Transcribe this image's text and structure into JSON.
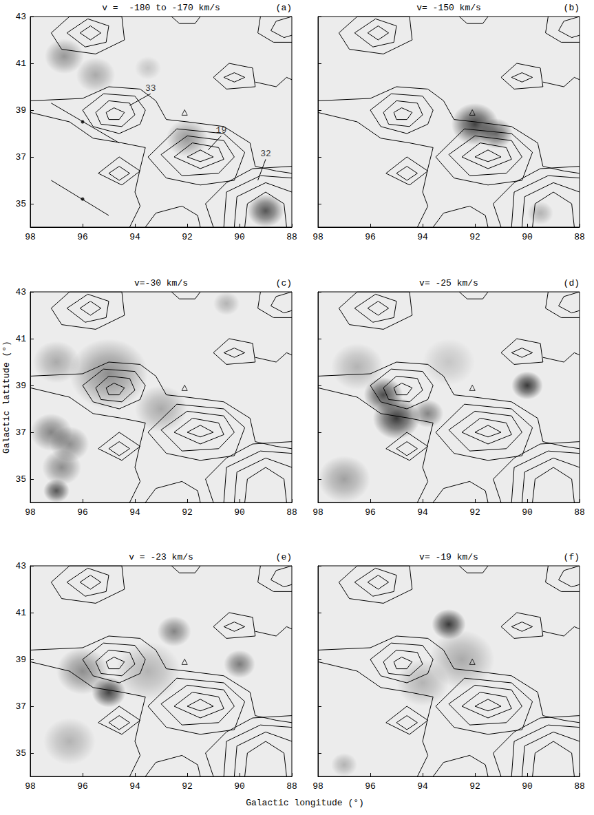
{
  "chart_data": [
    {
      "type": "contour_map",
      "title": "v =  -180 to -170 km/s",
      "panel": "(a)",
      "xlim": [
        98,
        88
      ],
      "ylim": [
        34,
        43
      ],
      "xticks": [
        88,
        90,
        92,
        94,
        96,
        98
      ],
      "yticks": [
        35,
        37,
        39,
        41,
        43
      ],
      "grid": false,
      "tick_labels": true,
      "blobs": [
        {
          "x": 96.7,
          "y": 41.3,
          "size": 1.5,
          "intensity": 0.45
        },
        {
          "x": 95.5,
          "y": 40.5,
          "size": 1.5,
          "intensity": 0.35
        },
        {
          "x": 92.0,
          "y": 37.8,
          "size": 1.6,
          "intensity": 0.45
        },
        {
          "x": 89.0,
          "y": 34.7,
          "size": 1.4,
          "intensity": 0.8
        },
        {
          "x": 93.5,
          "y": 40.8,
          "size": 1.0,
          "intensity": 0.2
        }
      ],
      "annotations": [
        {
          "text": "33",
          "x": 93.4,
          "y": 39.7,
          "to": [
            94.2,
            39.2
          ]
        },
        {
          "text": "19",
          "x": 90.7,
          "y": 37.9,
          "to": [
            91.2,
            37.3
          ]
        },
        {
          "text": "32",
          "x": 89.0,
          "y": 36.9,
          "to": [
            89.3,
            36.0
          ]
        }
      ],
      "segments": [
        {
          "from": [
            97.2,
            39.3
          ],
          "to": [
            94.6,
            37.6
          ],
          "dot": [
            96.0,
            38.5
          ]
        },
        {
          "from": [
            97.2,
            36.0
          ],
          "to": [
            95.0,
            34.5
          ],
          "dot": [
            96.0,
            35.2
          ]
        }
      ]
    },
    {
      "type": "contour_map",
      "title": "v= -150 km/s",
      "panel": "(b)",
      "xlim": [
        98,
        88
      ],
      "ylim": [
        34,
        43
      ],
      "xticks": [
        88,
        90,
        92,
        94,
        96,
        98
      ],
      "yticks": [
        35,
        37,
        39,
        41,
        43
      ],
      "grid": false,
      "tick_labels": "x",
      "blobs": [
        {
          "x": 92.0,
          "y": 38.4,
          "size": 1.8,
          "intensity": 0.9
        },
        {
          "x": 91.2,
          "y": 38.0,
          "size": 1.3,
          "intensity": 0.7
        },
        {
          "x": 89.5,
          "y": 34.6,
          "size": 1.0,
          "intensity": 0.3
        }
      ]
    },
    {
      "type": "contour_map",
      "title": "v=-30 km/s",
      "panel": "(c)",
      "xlim": [
        98,
        88
      ],
      "ylim": [
        34,
        43
      ],
      "xticks": [
        88,
        90,
        92,
        94,
        96,
        98
      ],
      "yticks": [
        35,
        37,
        39,
        41,
        43
      ],
      "grid": false,
      "tick_labels": true,
      "blobs": [
        {
          "x": 95.0,
          "y": 39.5,
          "size": 3.0,
          "intensity": 0.5
        },
        {
          "x": 97.2,
          "y": 37.0,
          "size": 1.6,
          "intensity": 0.55
        },
        {
          "x": 97.0,
          "y": 34.5,
          "size": 1.0,
          "intensity": 0.8
        },
        {
          "x": 96.5,
          "y": 36.5,
          "size": 1.5,
          "intensity": 0.5
        },
        {
          "x": 93.0,
          "y": 38.0,
          "size": 2.0,
          "intensity": 0.35
        },
        {
          "x": 97.0,
          "y": 40.0,
          "size": 1.8,
          "intensity": 0.35
        },
        {
          "x": 90.5,
          "y": 42.5,
          "size": 1.0,
          "intensity": 0.3
        },
        {
          "x": 96.8,
          "y": 35.5,
          "size": 1.5,
          "intensity": 0.5
        }
      ]
    },
    {
      "type": "contour_map",
      "title": "v= -25 km/s",
      "panel": "(d)",
      "xlim": [
        98,
        88
      ],
      "ylim": [
        34,
        43
      ],
      "xticks": [
        88,
        90,
        92,
        94,
        96,
        98
      ],
      "yticks": [
        35,
        37,
        39,
        41,
        43
      ],
      "grid": false,
      "tick_labels": "x",
      "blobs": [
        {
          "x": 95.0,
          "y": 37.6,
          "size": 1.8,
          "intensity": 0.95
        },
        {
          "x": 95.5,
          "y": 38.6,
          "size": 1.5,
          "intensity": 0.85
        },
        {
          "x": 93.8,
          "y": 37.8,
          "size": 1.2,
          "intensity": 0.55
        },
        {
          "x": 90.0,
          "y": 39.0,
          "size": 1.2,
          "intensity": 0.95
        },
        {
          "x": 97.0,
          "y": 35.0,
          "size": 2.0,
          "intensity": 0.4
        },
        {
          "x": 96.5,
          "y": 39.8,
          "size": 2.0,
          "intensity": 0.3
        },
        {
          "x": 93.0,
          "y": 40.0,
          "size": 2.0,
          "intensity": 0.2
        }
      ]
    },
    {
      "type": "contour_map",
      "title": "v = -23 km/s",
      "panel": "(e)",
      "xlim": [
        98,
        88
      ],
      "ylim": [
        34,
        43
      ],
      "xticks": [
        88,
        90,
        92,
        94,
        96,
        98
      ],
      "yticks": [
        35,
        37,
        39,
        41,
        43
      ],
      "grid": false,
      "tick_labels": true,
      "blobs": [
        {
          "x": 95.0,
          "y": 37.6,
          "size": 1.3,
          "intensity": 0.9
        },
        {
          "x": 96.0,
          "y": 38.5,
          "size": 2.0,
          "intensity": 0.5
        },
        {
          "x": 92.5,
          "y": 40.2,
          "size": 1.3,
          "intensity": 0.55
        },
        {
          "x": 90.0,
          "y": 38.8,
          "size": 1.2,
          "intensity": 0.6
        },
        {
          "x": 93.5,
          "y": 38.5,
          "size": 2.5,
          "intensity": 0.3
        },
        {
          "x": 96.5,
          "y": 35.5,
          "size": 2.0,
          "intensity": 0.3
        }
      ]
    },
    {
      "type": "contour_map",
      "title": "v= -19 km/s",
      "panel": "(f)",
      "xlim": [
        98,
        88
      ],
      "ylim": [
        34,
        43
      ],
      "xticks": [
        88,
        90,
        92,
        94,
        96,
        98
      ],
      "yticks": [
        35,
        37,
        39,
        41,
        43
      ],
      "grid": false,
      "tick_labels": "x",
      "blobs": [
        {
          "x": 93.0,
          "y": 40.5,
          "size": 1.3,
          "intensity": 0.95
        },
        {
          "x": 92.5,
          "y": 39.0,
          "size": 2.5,
          "intensity": 0.35
        },
        {
          "x": 94.0,
          "y": 38.0,
          "size": 2.0,
          "intensity": 0.3
        },
        {
          "x": 97.0,
          "y": 34.5,
          "size": 1.0,
          "intensity": 0.3
        }
      ]
    }
  ],
  "axis_titles": {
    "x": "Galactic longitude (°)",
    "y": "Galactic latitude (°)"
  },
  "source_marker": {
    "x": 92.1,
    "y": 38.9,
    "marker": "triangle"
  },
  "contours": [
    [
      [
        95.1,
        38.9
      ],
      [
        94.8,
        39.1
      ],
      [
        94.4,
        38.9
      ],
      [
        94.6,
        38.6
      ],
      [
        95.0,
        38.6
      ],
      [
        95.1,
        38.9
      ]
    ],
    [
      [
        95.5,
        38.9
      ],
      [
        95.0,
        39.4
      ],
      [
        94.2,
        39.3
      ],
      [
        94.0,
        38.8
      ],
      [
        94.5,
        38.3
      ],
      [
        95.3,
        38.4
      ],
      [
        95.5,
        38.9
      ]
    ],
    [
      [
        96.0,
        39.0
      ],
      [
        95.2,
        39.7
      ],
      [
        94.0,
        39.6
      ],
      [
        93.6,
        39.0
      ],
      [
        93.8,
        38.4
      ],
      [
        94.6,
        38.0
      ],
      [
        95.6,
        38.3
      ],
      [
        96.0,
        39.0
      ]
    ],
    [
      [
        98.0,
        39.4
      ],
      [
        96.0,
        39.5
      ],
      [
        95.0,
        40.0
      ],
      [
        93.8,
        39.9
      ],
      [
        93.2,
        39.4
      ],
      [
        92.8,
        38.6
      ],
      [
        92.0,
        38.5
      ],
      [
        90.6,
        38.3
      ],
      [
        89.6,
        37.6
      ],
      [
        89.4,
        36.6
      ],
      [
        88.6,
        36.4
      ],
      [
        88.0,
        36.3
      ]
    ],
    [
      [
        98.0,
        38.9
      ],
      [
        96.5,
        38.5
      ],
      [
        95.6,
        37.8
      ],
      [
        94.5,
        37.6
      ],
      [
        93.6,
        37.4
      ],
      [
        93.8,
        36.5
      ],
      [
        94.0,
        35.5
      ],
      [
        93.8,
        34.9
      ],
      [
        94.2,
        34.0
      ]
    ],
    [
      [
        92.0,
        37.0
      ],
      [
        91.5,
        37.3
      ],
      [
        91.0,
        37.0
      ],
      [
        91.5,
        36.8
      ],
      [
        92.0,
        37.0
      ]
    ],
    [
      [
        92.5,
        37.0
      ],
      [
        91.8,
        37.6
      ],
      [
        90.8,
        37.4
      ],
      [
        90.6,
        36.9
      ],
      [
        91.5,
        36.5
      ],
      [
        92.5,
        37.0
      ]
    ],
    [
      [
        93.0,
        37.1
      ],
      [
        92.0,
        37.9
      ],
      [
        90.6,
        37.7
      ],
      [
        90.2,
        37.0
      ],
      [
        90.8,
        36.3
      ],
      [
        92.2,
        36.2
      ],
      [
        93.0,
        37.1
      ]
    ],
    [
      [
        93.5,
        37.0
      ],
      [
        92.4,
        38.2
      ],
      [
        90.6,
        38.0
      ],
      [
        89.8,
        37.2
      ],
      [
        90.2,
        36.0
      ],
      [
        91.5,
        35.8
      ],
      [
        92.8,
        36.1
      ],
      [
        93.5,
        37.0
      ]
    ],
    [
      [
        95.0,
        36.3
      ],
      [
        94.6,
        36.6
      ],
      [
        94.2,
        36.3
      ],
      [
        94.6,
        36.0
      ],
      [
        95.0,
        36.3
      ]
    ],
    [
      [
        95.4,
        36.3
      ],
      [
        94.6,
        37.0
      ],
      [
        93.8,
        36.4
      ],
      [
        94.5,
        35.8
      ],
      [
        95.4,
        36.3
      ]
    ],
    [
      [
        89.8,
        34.0
      ],
      [
        89.7,
        35.0
      ],
      [
        89.0,
        35.5
      ],
      [
        88.3,
        35.0
      ],
      [
        88.2,
        34.0
      ]
    ],
    [
      [
        90.2,
        34.0
      ],
      [
        90.1,
        35.3
      ],
      [
        89.0,
        35.9
      ],
      [
        88.0,
        35.5
      ]
    ],
    [
      [
        90.6,
        34.0
      ],
      [
        90.5,
        35.5
      ],
      [
        89.2,
        36.2
      ],
      [
        88.0,
        36.1
      ]
    ],
    [
      [
        91.0,
        34.0
      ],
      [
        91.3,
        35.0
      ],
      [
        90.5,
        35.9
      ],
      [
        89.5,
        36.5
      ],
      [
        88.0,
        36.6
      ]
    ],
    [
      [
        93.6,
        34.0
      ],
      [
        93.2,
        34.6
      ],
      [
        92.2,
        34.9
      ],
      [
        91.6,
        34.5
      ],
      [
        91.5,
        34.0
      ]
    ],
    [
      [
        96.1,
        42.3
      ],
      [
        95.7,
        42.6
      ],
      [
        95.3,
        42.3
      ],
      [
        95.7,
        42.0
      ],
      [
        96.1,
        42.3
      ]
    ],
    [
      [
        96.6,
        42.3
      ],
      [
        95.8,
        42.9
      ],
      [
        95.0,
        42.6
      ],
      [
        95.1,
        41.9
      ],
      [
        95.9,
        41.7
      ],
      [
        96.6,
        42.3
      ]
    ],
    [
      [
        97.2,
        42.3
      ],
      [
        96.5,
        43.0
      ],
      [
        94.5,
        43.0
      ],
      [
        94.4,
        42.0
      ],
      [
        95.5,
        41.4
      ],
      [
        96.8,
        41.6
      ],
      [
        97.2,
        42.3
      ]
    ],
    [
      [
        90.6,
        40.4
      ],
      [
        90.2,
        40.6
      ],
      [
        89.8,
        40.4
      ],
      [
        90.2,
        40.2
      ],
      [
        90.6,
        40.4
      ]
    ],
    [
      [
        91.0,
        40.4
      ],
      [
        90.4,
        41.0
      ],
      [
        89.5,
        40.8
      ],
      [
        89.4,
        40.0
      ],
      [
        90.5,
        39.9
      ],
      [
        91.0,
        40.4
      ]
    ],
    [
      [
        89.4,
        40.2
      ],
      [
        88.6,
        40.0
      ],
      [
        88.2,
        40.4
      ],
      [
        88.0,
        40.3
      ]
    ],
    [
      [
        88.0,
        43.0
      ],
      [
        88.6,
        42.8
      ],
      [
        88.8,
        42.4
      ],
      [
        88.3,
        42.1
      ],
      [
        88.0,
        42.2
      ]
    ],
    [
      [
        89.2,
        43.0
      ],
      [
        89.3,
        42.3
      ],
      [
        88.7,
        41.9
      ],
      [
        88.0,
        41.9
      ]
    ],
    [
      [
        92.6,
        43.0
      ],
      [
        92.3,
        42.7
      ],
      [
        91.7,
        42.7
      ],
      [
        91.5,
        43.0
      ]
    ]
  ]
}
